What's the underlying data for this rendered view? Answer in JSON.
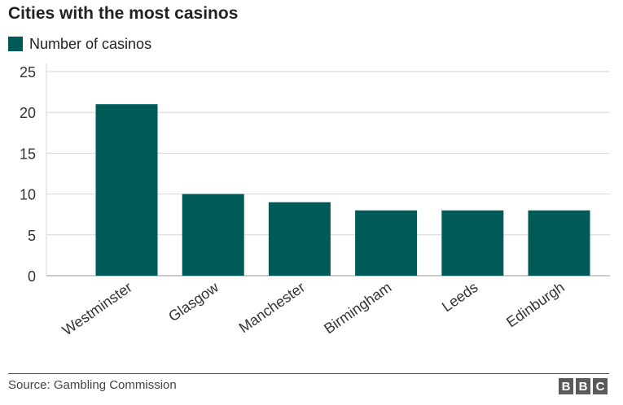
{
  "chart_data": {
    "type": "bar",
    "title": "Cities with the most casinos",
    "categories": [
      "Westminster",
      "Glasgow",
      "Manchester",
      "Birmingham",
      "Leeds",
      "Edinburgh"
    ],
    "series": [
      {
        "name": "Number of casinos",
        "values": [
          21,
          10,
          9,
          8,
          8,
          8
        ]
      }
    ],
    "ylim": [
      0,
      25
    ],
    "yticks": [
      0,
      5,
      10,
      15,
      20,
      25
    ],
    "grid": true,
    "legend_position": "top-left",
    "bar_color": "#005a57"
  },
  "footer": {
    "source": "Source: Gambling Commission",
    "logo_letters": [
      "B",
      "B",
      "C"
    ]
  }
}
